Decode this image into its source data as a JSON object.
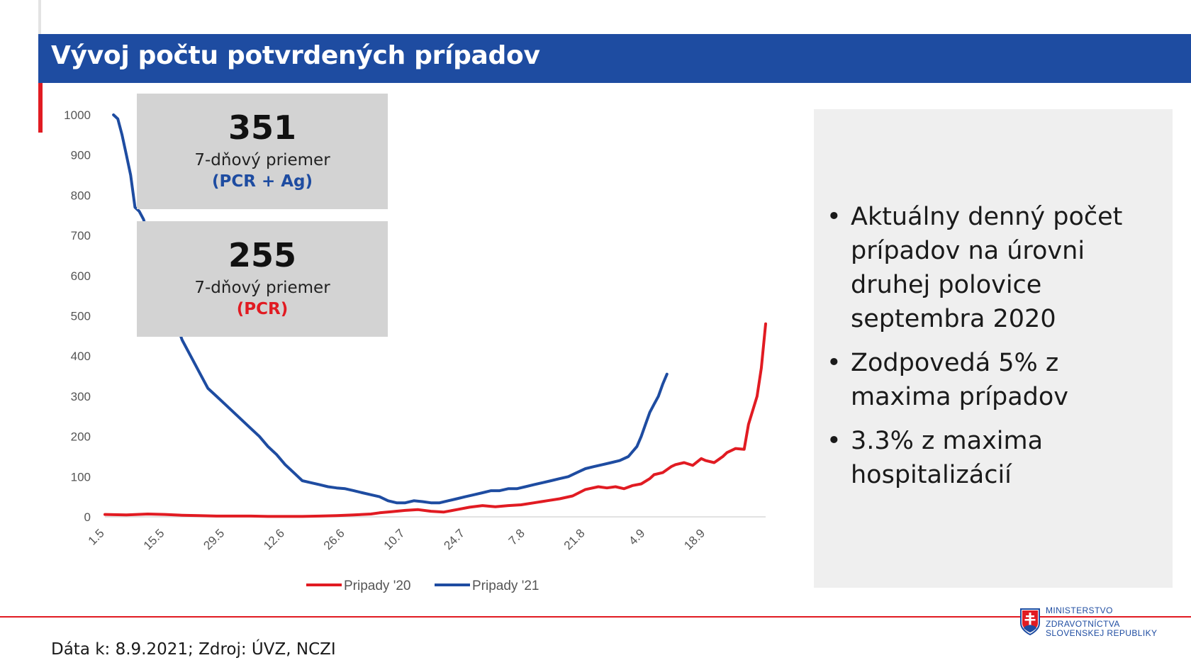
{
  "header": {
    "title": "Vývoj počtu potvrdených prípadov"
  },
  "stats": [
    {
      "value": "351",
      "label": "7-dňový priemer",
      "sub": "(PCR + Ag)",
      "sub_color": "#1e4ca1"
    },
    {
      "value": "255",
      "label": "7-dňový priemer",
      "sub": "(PCR)",
      "sub_color": "#e11b22"
    }
  ],
  "bullets": [
    "Aktuálny denný počet prípadov na úrovni druhej polovice septembra 2020",
    "Zodpovedá 5% z maxima prípadov",
    "3.3% z maxima hospitalizácií"
  ],
  "footer": {
    "source": "Dáta k: 8.9.2021; Zdroj: ÚVZ, NCZI"
  },
  "ministry": {
    "line1": "MINISTERSTVO",
    "line2": "ZDRAVOTNÍCTVA",
    "line3": "SLOVENSKEJ REPUBLIKY"
  },
  "colors": {
    "accent_blue": "#1e4ca1",
    "accent_red": "#e11b22"
  },
  "chart_data": {
    "type": "line",
    "title": "",
    "xlabel": "",
    "ylabel": "",
    "ylim": [
      0,
      1000
    ],
    "y_ticks": [
      0,
      100,
      200,
      300,
      400,
      500,
      600,
      700,
      800,
      900,
      1000
    ],
    "x_tick_labels": [
      "1.5",
      "15.5",
      "29.5",
      "12.6",
      "26.6",
      "10.7",
      "24.7",
      "7.8",
      "21.8",
      "4.9",
      "18.9"
    ],
    "x_unit": "days since 1.5",
    "x_range": [
      0,
      154
    ],
    "x_tick_positions": [
      0,
      14,
      28,
      42,
      56,
      70,
      84,
      98,
      112,
      126,
      140
    ],
    "grid": false,
    "legend_position": "bottom",
    "series": [
      {
        "name": "Pripady '20",
        "color": "#e11b22",
        "x": [
          0,
          5,
          10,
          14,
          18,
          22,
          26,
          30,
          34,
          38,
          42,
          46,
          50,
          54,
          58,
          62,
          64,
          67,
          70,
          73,
          76,
          79,
          82,
          85,
          88,
          91,
          94,
          97,
          100,
          103,
          106,
          109,
          112,
          115,
          117,
          119,
          121,
          123,
          125,
          127,
          128,
          130,
          132,
          133,
          135,
          137,
          139,
          140,
          142,
          144,
          145,
          146,
          147,
          149,
          150,
          152,
          153,
          154
        ],
        "y": [
          6,
          5,
          7,
          6,
          4,
          3,
          2,
          2,
          2,
          1,
          1,
          1,
          2,
          3,
          5,
          7,
          10,
          13,
          16,
          18,
          14,
          12,
          18,
          24,
          28,
          25,
          28,
          30,
          35,
          40,
          45,
          52,
          68,
          75,
          72,
          75,
          70,
          78,
          82,
          95,
          105,
          110,
          125,
          130,
          135,
          128,
          145,
          140,
          135,
          150,
          160,
          165,
          170,
          168,
          230,
          300,
          370,
          480
        ]
      },
      {
        "name": "Pripady '21",
        "color": "#1e4ca1",
        "x": [
          2,
          3,
          4,
          5,
          6,
          7,
          8,
          9,
          10,
          11,
          12,
          13,
          14,
          15,
          16,
          18,
          20,
          22,
          24,
          26,
          28,
          30,
          32,
          34,
          36,
          38,
          40,
          42,
          44,
          46,
          48,
          50,
          52,
          54,
          56,
          58,
          60,
          62,
          64,
          66,
          68,
          70,
          72,
          74,
          76,
          78,
          80,
          82,
          84,
          86,
          88,
          90,
          92,
          94,
          96,
          98,
          100,
          102,
          104,
          106,
          108,
          110,
          112,
          114,
          116,
          118,
          120,
          122,
          124,
          125,
          126,
          127,
          128,
          129,
          130,
          131
        ],
        "y": [
          1000,
          990,
          950,
          900,
          850,
          770,
          760,
          740,
          700,
          670,
          640,
          600,
          580,
          540,
          500,
          440,
          400,
          360,
          320,
          300,
          280,
          260,
          240,
          220,
          200,
          175,
          155,
          130,
          110,
          90,
          85,
          80,
          75,
          72,
          70,
          65,
          60,
          55,
          50,
          40,
          35,
          35,
          40,
          38,
          35,
          35,
          40,
          45,
          50,
          55,
          60,
          65,
          65,
          70,
          70,
          75,
          80,
          85,
          90,
          95,
          100,
          110,
          120,
          125,
          130,
          135,
          140,
          150,
          175,
          200,
          230,
          260,
          280,
          300,
          330,
          355
        ]
      }
    ]
  }
}
